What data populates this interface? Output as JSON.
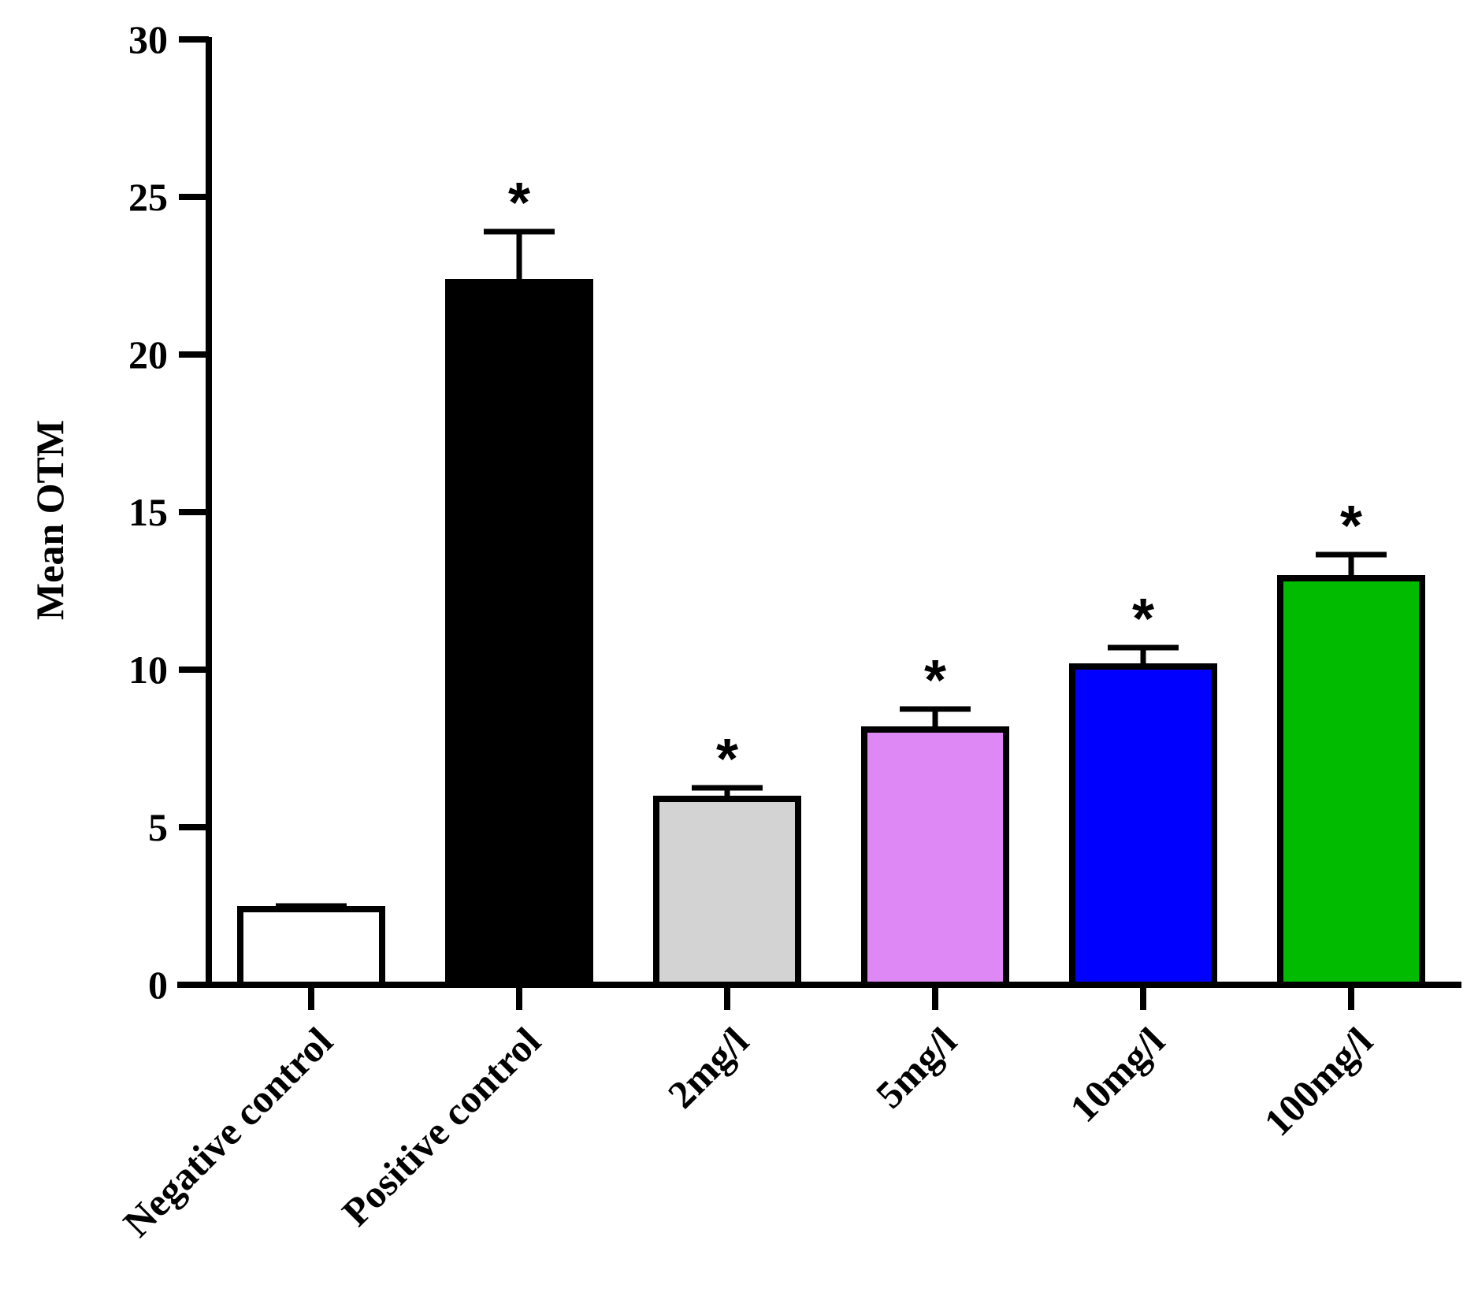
{
  "chart_data": {
    "type": "bar",
    "title": "",
    "xlabel": "",
    "ylabel": "Mean OTM",
    "ylim": [
      0,
      30
    ],
    "yticks": [
      0,
      5,
      10,
      15,
      20,
      25,
      30
    ],
    "grid": false,
    "categories": [
      "Negative control",
      "Positive control",
      "2mg/l",
      "5mg/l",
      "10mg/l",
      "100mg/l"
    ],
    "values": [
      2.4,
      22.3,
      5.9,
      8.1,
      10.1,
      12.9
    ],
    "error": [
      0.1,
      1.6,
      0.35,
      0.65,
      0.6,
      0.75
    ],
    "significance": [
      "",
      "*",
      "*",
      "*",
      "*",
      "*"
    ],
    "colors": [
      "#ffffff",
      "#000000",
      "#d3d3d3",
      "#dd88f5",
      "#0000ff",
      "#00bb00"
    ]
  }
}
